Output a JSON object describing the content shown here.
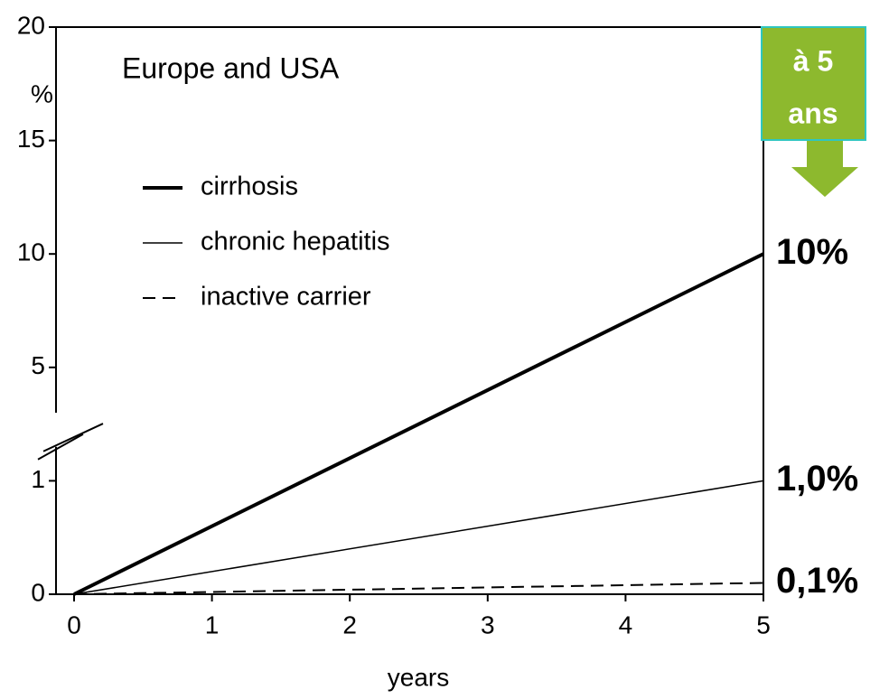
{
  "chart_data": {
    "type": "line",
    "title": "Europe and USA",
    "xlabel": "years",
    "ylabel": "%",
    "x": [
      0,
      5
    ],
    "series": [
      {
        "name": "cirrhosis",
        "color": "#000000",
        "width": 4,
        "dash": false,
        "values": [
          0,
          10
        ],
        "value_labels": [
          null,
          "10%"
        ]
      },
      {
        "name": "chronic hepatitis",
        "color": "#000000",
        "width": 1.5,
        "dash": false,
        "values": [
          0,
          1
        ],
        "value_labels": [
          null,
          "1,0%"
        ]
      },
      {
        "name": "inactive carrier",
        "color": "#000000",
        "width": 2,
        "dash": true,
        "values": [
          0,
          0.1
        ],
        "value_labels": [
          null,
          "0,1%"
        ]
      }
    ],
    "xlim": [
      0,
      5
    ],
    "xticks": [
      0,
      1,
      2,
      3,
      4,
      5
    ],
    "ylim": [
      0,
      20
    ],
    "yticks": [
      0,
      1,
      5,
      10,
      15,
      20
    ],
    "axis_break": true,
    "callout": {
      "lines": [
        "à 5",
        "ans"
      ],
      "color": "#8db92e"
    }
  }
}
